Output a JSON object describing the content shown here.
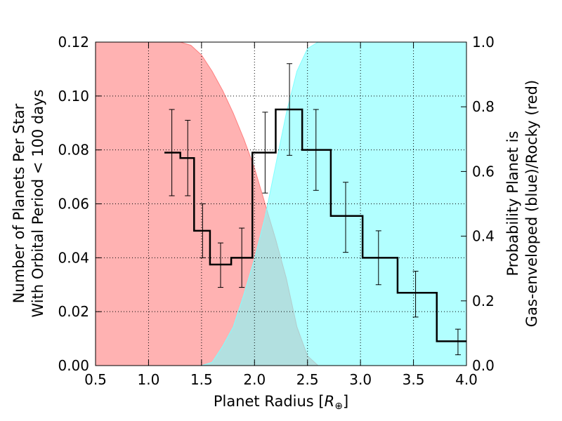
{
  "chart_data": {
    "type": "line",
    "xlabel": "Planet Radius [R⊕]",
    "xlabel_main": "Planet Radius",
    "xlabel_unit": "R",
    "xlabel_sub": "⊕",
    "ylabel_left": [
      "Number of Planets Per Star",
      "With Orbital Period < 100 days"
    ],
    "ylabel_right": [
      "Probability Planet is",
      "Gas-enveloped (blue)/Rocky (red)"
    ],
    "xlim": [
      0.5,
      4.0
    ],
    "ylim_left": [
      0.0,
      0.12
    ],
    "ylim_right": [
      0.0,
      1.0
    ],
    "x_ticks": [
      "0.5",
      "1.0",
      "1.5",
      "2.0",
      "2.5",
      "3.0",
      "3.5",
      "4.0"
    ],
    "y_left_ticks": [
      "0.00",
      "0.02",
      "0.04",
      "0.06",
      "0.08",
      "0.10",
      "0.12"
    ],
    "y_right_ticks": [
      "0.0",
      "0.2",
      "0.4",
      "0.6",
      "0.8",
      "1.0"
    ],
    "grid": true,
    "colors": {
      "rocky": "#ff7f7f",
      "gas": "#7fffff",
      "overlap": "#b4c2c2",
      "histogram": "#000000",
      "errorbar": "#000000"
    },
    "histogram": {
      "edges": [
        1.15,
        1.3,
        1.43,
        1.58,
        1.78,
        1.98,
        2.2,
        2.45,
        2.72,
        3.02,
        3.35,
        3.72,
        4.0
      ],
      "values": [
        0.079,
        0.077,
        0.05,
        0.0375,
        0.04,
        0.079,
        0.095,
        0.08,
        0.0555,
        0.04,
        0.027,
        0.009
      ],
      "centers": [
        1.22,
        1.37,
        1.51,
        1.68,
        1.88,
        2.1,
        2.33,
        2.58,
        2.86,
        3.17,
        3.52,
        3.92
      ],
      "err_low": [
        0.063,
        0.063,
        0.04,
        0.029,
        0.029,
        0.064,
        0.078,
        0.065,
        0.042,
        0.03,
        0.018,
        0.004
      ],
      "err_high": [
        0.095,
        0.091,
        0.06,
        0.0455,
        0.051,
        0.094,
        0.112,
        0.095,
        0.068,
        0.05,
        0.035,
        0.0135
      ]
    },
    "series": [
      {
        "name": "Rocky (red)",
        "x": [
          0.5,
          1.2,
          1.3,
          1.4,
          1.5,
          1.6,
          1.7,
          1.8,
          1.9,
          2.0,
          2.1,
          2.2,
          2.3,
          2.4,
          2.5,
          2.6
        ],
        "values": [
          1.0,
          1.0,
          1.0,
          0.99,
          0.96,
          0.91,
          0.85,
          0.78,
          0.7,
          0.61,
          0.5,
          0.39,
          0.27,
          0.12,
          0.03,
          0.0
        ]
      },
      {
        "name": "Gas-enveloped (blue)",
        "x": [
          1.5,
          1.6,
          1.7,
          1.8,
          1.9,
          2.0,
          2.1,
          2.2,
          2.3,
          2.4,
          2.5,
          2.6,
          2.7,
          2.8,
          4.0
        ],
        "values": [
          0.0,
          0.01,
          0.06,
          0.12,
          0.22,
          0.33,
          0.46,
          0.62,
          0.78,
          0.91,
          0.98,
          1.0,
          1.0,
          1.0,
          1.0
        ]
      }
    ]
  }
}
